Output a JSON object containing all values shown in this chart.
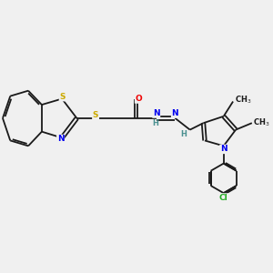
{
  "background_color": "#f0f0f0",
  "bond_color": "#1a1a1a",
  "atom_colors": {
    "S": "#ccaa00",
    "N": "#0000ee",
    "O": "#ee0000",
    "Cl": "#22aa22",
    "C": "#1a1a1a",
    "H": "#4a9090"
  },
  "figsize": [
    3.0,
    3.0
  ],
  "dpi": 100,
  "lw": 1.3,
  "fontsize": 6.5
}
